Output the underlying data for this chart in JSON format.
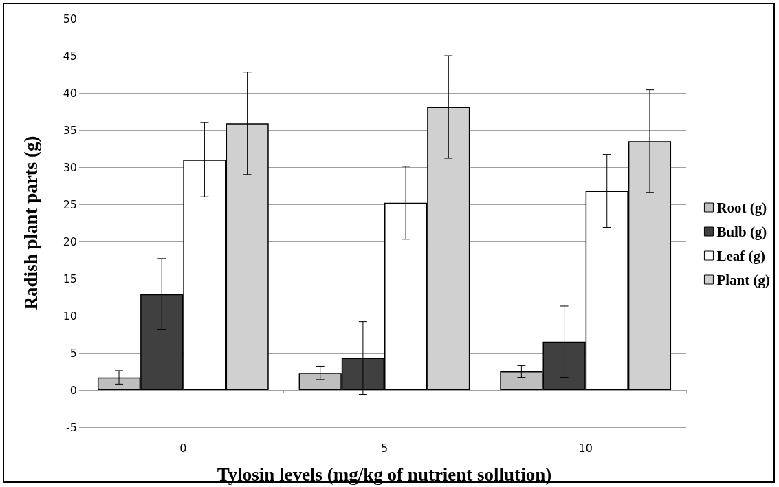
{
  "chart_data": {
    "type": "bar",
    "xlabel": "Tylosin levels (mg/kg of nutrient sollution)",
    "ylabel": "Radish plant parts (g)",
    "categories": [
      "0",
      "5",
      "10"
    ],
    "series": [
      {
        "name": "Root (g)",
        "color": "#bfbfbf",
        "values": [
          1.7,
          2.3,
          2.5
        ],
        "errors": [
          0.9,
          0.9,
          0.8
        ]
      },
      {
        "name": "Bulb (g)",
        "color": "#404040",
        "values": [
          12.9,
          4.3,
          6.5
        ],
        "errors": [
          4.8,
          4.9,
          4.8
        ]
      },
      {
        "name": "Leaf (g)",
        "color": "#ffffff",
        "values": [
          31.0,
          25.2,
          26.8
        ],
        "errors": [
          5.0,
          4.9,
          4.9
        ]
      },
      {
        "name": "Plant (g)",
        "color": "#d0d0d0",
        "values": [
          35.9,
          38.1,
          33.5
        ],
        "errors": [
          6.9,
          6.9,
          6.9
        ]
      }
    ],
    "ylim": [
      -5,
      50
    ],
    "yticks": [
      -5,
      0,
      5,
      10,
      15,
      20,
      25,
      30,
      35,
      40,
      45,
      50
    ],
    "grid": "y",
    "legend": "right"
  }
}
